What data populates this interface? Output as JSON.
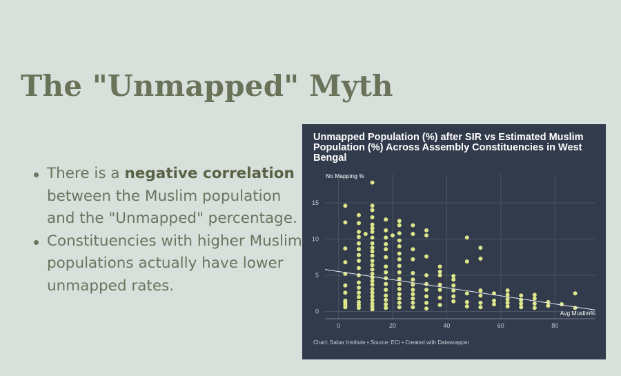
{
  "slide": {
    "title": "The \"Unmapped\" Myth",
    "bullets": [
      {
        "pre": "There is a ",
        "bold": "negative correlation",
        "post": " between the Muslim population and the \"Unmapped\" percentage."
      },
      {
        "pre": "Constituencies with higher Muslim populations actually have lower unmapped rates.",
        "bold": "",
        "post": ""
      }
    ]
  },
  "colors": {
    "background": "#d7e0da",
    "title": "#6a7359",
    "text": "#6c735f",
    "panel": "#323b4c",
    "dot": "#dde68a",
    "trend": "#e8ebef"
  },
  "chart_data": {
    "type": "scatter",
    "title": "Unmapped Population (%) after SIR vs Estimated Muslim Population (%) Across Assembly Constituencies in West Bengal",
    "xlabel": "Avg Muslim%",
    "ylabel": "No Mapping %",
    "xlim": [
      -5,
      95
    ],
    "ylim": [
      -1,
      19
    ],
    "xticks": [
      0,
      20,
      40,
      60,
      80
    ],
    "yticks": [
      0,
      5,
      10,
      15
    ],
    "grid": true,
    "trendline": {
      "from": [
        -5,
        5.8
      ],
      "to": [
        95,
        0.2
      ]
    },
    "footer": "Chart: Sabar Institute • Source: ECI • Created with Datawrapper",
    "points": [
      [
        2.5,
        0.6
      ],
      [
        2.5,
        0.9
      ],
      [
        2.5,
        1.2
      ],
      [
        2.5,
        1.5
      ],
      [
        2.5,
        2.6
      ],
      [
        2.5,
        3.6
      ],
      [
        2.5,
        5.2
      ],
      [
        2.5,
        6.8
      ],
      [
        2.5,
        8.7
      ],
      [
        2.5,
        12.3
      ],
      [
        2.5,
        14.6
      ],
      [
        7.5,
        0.5
      ],
      [
        7.5,
        0.9
      ],
      [
        7.5,
        1.3
      ],
      [
        7.5,
        2.0
      ],
      [
        7.5,
        2.6
      ],
      [
        7.5,
        3.3
      ],
      [
        7.5,
        4.0
      ],
      [
        7.5,
        5.0
      ],
      [
        7.5,
        6.0
      ],
      [
        7.5,
        7.0
      ],
      [
        7.5,
        7.8
      ],
      [
        7.5,
        8.6
      ],
      [
        7.5,
        9.4
      ],
      [
        7.5,
        10.3
      ],
      [
        7.5,
        11.0
      ],
      [
        7.5,
        12.2
      ],
      [
        7.5,
        13.3
      ],
      [
        10,
        10.7
      ],
      [
        12.5,
        0.3
      ],
      [
        12.5,
        0.7
      ],
      [
        12.5,
        1.1
      ],
      [
        12.5,
        1.6
      ],
      [
        12.5,
        2.1
      ],
      [
        12.5,
        2.6
      ],
      [
        12.5,
        3.1
      ],
      [
        12.5,
        3.7
      ],
      [
        12.5,
        4.2
      ],
      [
        12.5,
        4.7
      ],
      [
        12.5,
        5.2
      ],
      [
        12.5,
        5.8
      ],
      [
        12.5,
        6.4
      ],
      [
        12.5,
        7.0
      ],
      [
        12.5,
        7.7
      ],
      [
        12.5,
        8.3
      ],
      [
        12.5,
        8.8
      ],
      [
        12.5,
        9.4
      ],
      [
        12.5,
        10.2
      ],
      [
        12.5,
        11.0
      ],
      [
        12.5,
        11.5
      ],
      [
        12.5,
        12.0
      ],
      [
        12.5,
        13.0
      ],
      [
        12.5,
        14.0
      ],
      [
        12.5,
        14.6
      ],
      [
        12.5,
        17.8
      ],
      [
        17.5,
        0.5
      ],
      [
        17.5,
        1.0
      ],
      [
        17.5,
        1.6
      ],
      [
        17.5,
        2.2
      ],
      [
        17.5,
        3.0
      ],
      [
        17.5,
        3.8
      ],
      [
        17.5,
        4.6
      ],
      [
        17.5,
        5.4
      ],
      [
        17.5,
        6.2
      ],
      [
        17.5,
        7.5
      ],
      [
        17.5,
        8.6
      ],
      [
        17.5,
        9.3
      ],
      [
        17.5,
        10.2
      ],
      [
        17.5,
        11.2
      ],
      [
        17.5,
        12.7
      ],
      [
        20,
        10.5
      ],
      [
        22.5,
        0.6
      ],
      [
        22.5,
        1.2
      ],
      [
        22.5,
        1.8
      ],
      [
        22.5,
        2.4
      ],
      [
        22.5,
        3.1
      ],
      [
        22.5,
        3.8
      ],
      [
        22.5,
        4.5
      ],
      [
        22.5,
        5.4
      ],
      [
        22.5,
        6.3
      ],
      [
        22.5,
        7.2
      ],
      [
        22.5,
        8.0
      ],
      [
        22.5,
        9.0
      ],
      [
        22.5,
        9.8
      ],
      [
        22.5,
        10.8
      ],
      [
        22.5,
        11.9
      ],
      [
        22.5,
        12.5
      ],
      [
        27.5,
        0.6
      ],
      [
        27.5,
        1.2
      ],
      [
        27.5,
        1.8
      ],
      [
        27.5,
        2.4
      ],
      [
        27.5,
        3.0
      ],
      [
        27.5,
        3.7
      ],
      [
        27.5,
        4.4
      ],
      [
        27.5,
        5.3
      ],
      [
        27.5,
        7.2
      ],
      [
        27.5,
        8.6
      ],
      [
        27.5,
        10.7
      ],
      [
        27.5,
        11.9
      ],
      [
        32.5,
        0.4
      ],
      [
        32.5,
        1.2
      ],
      [
        32.5,
        2.1
      ],
      [
        32.5,
        3.0
      ],
      [
        32.5,
        3.8
      ],
      [
        32.5,
        5.0
      ],
      [
        32.5,
        7.6
      ],
      [
        32.5,
        10.5
      ],
      [
        32.5,
        11.2
      ],
      [
        37.5,
        0.9
      ],
      [
        37.5,
        1.9
      ],
      [
        37.5,
        3.0
      ],
      [
        37.5,
        3.7
      ],
      [
        37.5,
        5.0
      ],
      [
        37.5,
        5.5
      ],
      [
        37.5,
        6.2
      ],
      [
        42.5,
        1.4
      ],
      [
        42.5,
        2.1
      ],
      [
        42.5,
        2.9
      ],
      [
        42.5,
        3.6
      ],
      [
        42.5,
        4.4
      ],
      [
        42.5,
        4.9
      ],
      [
        47.5,
        0.7
      ],
      [
        47.5,
        1.3
      ],
      [
        47.5,
        2.5
      ],
      [
        47.5,
        6.9
      ],
      [
        47.5,
        10.2
      ],
      [
        52.5,
        0.6
      ],
      [
        52.5,
        1.2
      ],
      [
        52.5,
        2.2
      ],
      [
        52.5,
        2.9
      ],
      [
        52.5,
        7.3
      ],
      [
        52.5,
        8.8
      ],
      [
        57.5,
        1.0
      ],
      [
        57.5,
        1.5
      ],
      [
        57.5,
        2.5
      ],
      [
        62.5,
        0.7
      ],
      [
        62.5,
        1.2
      ],
      [
        62.5,
        1.7
      ],
      [
        62.5,
        2.3
      ],
      [
        62.5,
        2.9
      ],
      [
        67.5,
        0.6
      ],
      [
        67.5,
        1.1
      ],
      [
        67.5,
        1.6
      ],
      [
        67.5,
        2.2
      ],
      [
        72.5,
        0.5
      ],
      [
        72.5,
        1.1
      ],
      [
        72.5,
        1.8
      ],
      [
        72.5,
        2.3
      ],
      [
        77.5,
        0.8
      ],
      [
        77.5,
        1.3
      ],
      [
        82.5,
        1.0
      ],
      [
        87.5,
        0.5
      ],
      [
        87.5,
        2.5
      ]
    ]
  }
}
